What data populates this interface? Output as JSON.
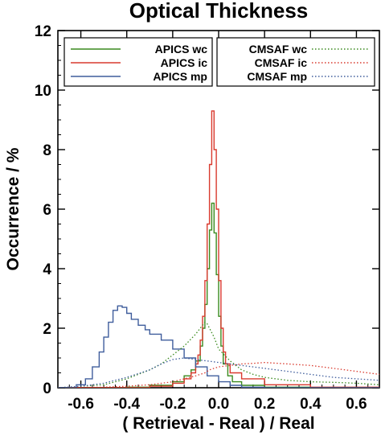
{
  "chart_data": {
    "type": "line",
    "title": "Optical Thickness",
    "xlabel": "( Retrieval - Real ) / Real",
    "ylabel": "Occurrence / %",
    "xlim": [
      -0.7,
      0.7
    ],
    "ylim": [
      0,
      12
    ],
    "xticks": [
      -0.6,
      -0.4,
      -0.2,
      0.0,
      0.2,
      0.4,
      0.6
    ],
    "xtick_labels": [
      "-0.6",
      "-0.4",
      "-0.2",
      "0.0",
      "0.2",
      "0.4",
      "0.6"
    ],
    "yticks": [
      0,
      2,
      4,
      6,
      8,
      10,
      12
    ],
    "ytick_labels": [
      "0",
      "2",
      "4",
      "6",
      "8",
      "10",
      "12"
    ],
    "grid": false,
    "legend_placement": "top",
    "series": [
      {
        "name": "APICS wc",
        "color": "#3a8a1e",
        "style": "step",
        "x": [
          -0.7,
          -0.55,
          -0.4,
          -0.3,
          -0.2,
          -0.15,
          -0.12,
          -0.1,
          -0.08,
          -0.07,
          -0.06,
          -0.05,
          -0.04,
          -0.03,
          -0.02,
          -0.01,
          0.0,
          0.01,
          0.02,
          0.04,
          0.06,
          0.1,
          0.2,
          0.4,
          0.7
        ],
        "y": [
          0.0,
          0.0,
          0.02,
          0.08,
          0.2,
          0.4,
          0.6,
          0.9,
          1.4,
          2.0,
          2.8,
          4.0,
          5.3,
          6.2,
          5.2,
          3.8,
          2.4,
          1.4,
          0.8,
          0.4,
          0.2,
          0.08,
          0.02,
          0.0,
          0.0
        ]
      },
      {
        "name": "APICS ic",
        "color": "#d93a2e",
        "style": "step",
        "x": [
          -0.7,
          -0.5,
          -0.3,
          -0.2,
          -0.15,
          -0.12,
          -0.1,
          -0.09,
          -0.08,
          -0.07,
          -0.06,
          -0.05,
          -0.04,
          -0.03,
          -0.02,
          -0.01,
          0.0,
          0.01,
          0.02,
          0.03,
          0.05,
          0.1,
          0.2,
          0.4,
          0.7
        ],
        "y": [
          0.0,
          0.0,
          0.05,
          0.15,
          0.3,
          0.5,
          0.8,
          1.1,
          1.6,
          2.4,
          3.6,
          5.5,
          7.5,
          9.3,
          8.0,
          6.0,
          3.6,
          2.0,
          1.2,
          0.8,
          0.5,
          0.3,
          0.1,
          0.02,
          0.0
        ]
      },
      {
        "name": "APICS mp",
        "color": "#3f5d9c",
        "style": "step",
        "x": [
          -0.7,
          -0.62,
          -0.58,
          -0.55,
          -0.52,
          -0.5,
          -0.48,
          -0.46,
          -0.44,
          -0.42,
          -0.4,
          -0.38,
          -0.35,
          -0.32,
          -0.3,
          -0.25,
          -0.2,
          -0.15,
          -0.1,
          -0.05,
          0.0,
          0.05,
          0.1,
          0.2,
          0.7
        ],
        "y": [
          0.0,
          0.1,
          0.3,
          0.7,
          1.2,
          1.7,
          2.2,
          2.6,
          2.75,
          2.7,
          2.5,
          2.3,
          2.1,
          1.95,
          1.8,
          1.6,
          1.3,
          1.0,
          0.7,
          0.4,
          0.2,
          0.08,
          0.02,
          0.0,
          0.0
        ]
      },
      {
        "name": "CMSAF wc",
        "color": "#3a8a1e",
        "style": "dotted",
        "x": [
          -0.7,
          -0.5,
          -0.4,
          -0.3,
          -0.25,
          -0.2,
          -0.15,
          -0.1,
          -0.08,
          -0.06,
          -0.05,
          -0.04,
          -0.02,
          0.0,
          0.05,
          0.1,
          0.15,
          0.2,
          0.3,
          0.4,
          0.5,
          0.6,
          0.7
        ],
        "y": [
          0.0,
          0.1,
          0.3,
          0.6,
          0.8,
          1.1,
          1.4,
          1.8,
          2.0,
          2.2,
          2.15,
          2.0,
          1.7,
          1.3,
          0.9,
          0.6,
          0.45,
          0.35,
          0.25,
          0.2,
          0.18,
          0.15,
          0.1
        ]
      },
      {
        "name": "CMSAF ic",
        "color": "#d93a2e",
        "style": "dotted",
        "x": [
          -0.7,
          -0.5,
          -0.4,
          -0.3,
          -0.2,
          -0.15,
          -0.1,
          -0.06,
          -0.04,
          -0.02,
          0.0,
          0.05,
          0.1,
          0.15,
          0.2,
          0.3,
          0.4,
          0.5,
          0.6,
          0.7
        ],
        "y": [
          0.0,
          0.02,
          0.05,
          0.1,
          0.2,
          0.3,
          0.4,
          0.5,
          0.6,
          0.65,
          0.7,
          0.75,
          0.8,
          0.82,
          0.85,
          0.8,
          0.75,
          0.65,
          0.55,
          0.45
        ]
      },
      {
        "name": "CMSAF mp",
        "color": "#3f5d9c",
        "style": "dotted",
        "x": [
          -0.7,
          -0.6,
          -0.5,
          -0.4,
          -0.3,
          -0.25,
          -0.2,
          -0.15,
          -0.1,
          -0.05,
          0.0,
          0.05,
          0.1,
          0.2,
          0.3,
          0.4,
          0.5,
          0.6,
          0.7
        ],
        "y": [
          0.0,
          0.05,
          0.15,
          0.35,
          0.6,
          0.8,
          0.95,
          1.0,
          0.95,
          0.9,
          0.85,
          0.8,
          0.75,
          0.65,
          0.55,
          0.45,
          0.35,
          0.3,
          0.25
        ]
      }
    ]
  }
}
